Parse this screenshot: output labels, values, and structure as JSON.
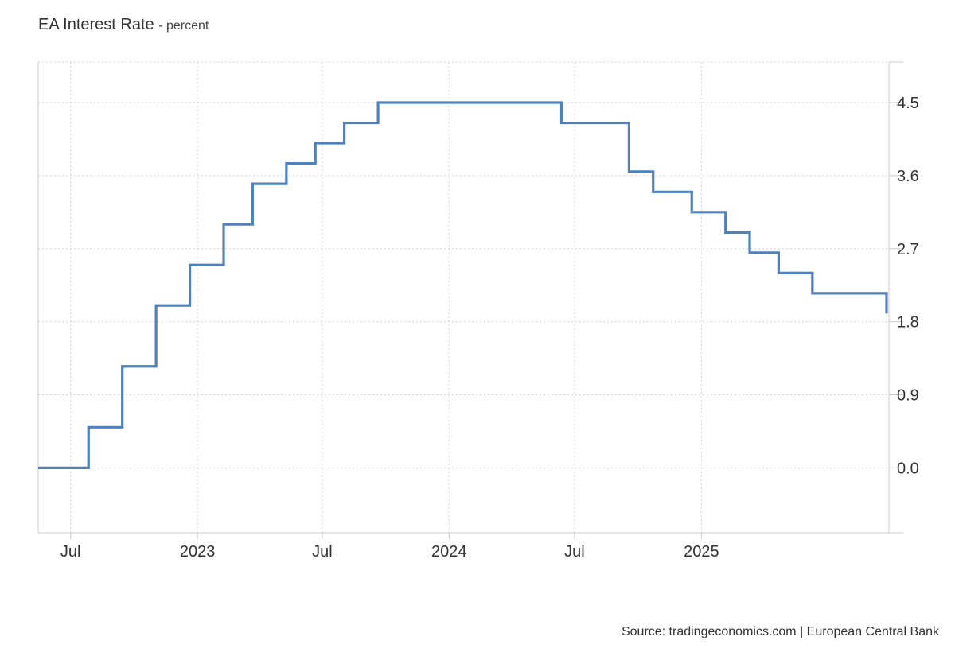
{
  "title": "EA Interest Rate",
  "subtitle": "- percent",
  "source": "Source: tradingeconomics.com | European Central Bank",
  "colors": {
    "line": "#4f81bd",
    "grid": "#d6d6d6",
    "axis": "#cccccc"
  },
  "chart_data": {
    "type": "line",
    "step": true,
    "title": "EA Interest Rate",
    "ylabel": "percent",
    "xlim": [
      "2022-05-15",
      "2025-09-30"
    ],
    "ylim": [
      -0.8,
      5.0
    ],
    "yticks": [
      0.0,
      0.9,
      1.8,
      2.7,
      3.6,
      4.5
    ],
    "ytick_labels": [
      "0.0",
      "0.9",
      "1.8",
      "2.7",
      "3.6",
      "4.5"
    ],
    "xticks": [
      {
        "date": "2022-07-01",
        "label": "Jul"
      },
      {
        "date": "2023-01-01",
        "label": "2023"
      },
      {
        "date": "2023-07-01",
        "label": "Jul"
      },
      {
        "date": "2024-01-01",
        "label": "2024"
      },
      {
        "date": "2024-07-01",
        "label": "Jul"
      },
      {
        "date": "2025-01-01",
        "label": "2025"
      }
    ],
    "grid": true,
    "series": [
      {
        "points": [
          {
            "x": "2022-05-15",
            "y": 0.0
          },
          {
            "x": "2022-07-27",
            "y": 0.5
          },
          {
            "x": "2022-09-14",
            "y": 1.25
          },
          {
            "x": "2022-11-02",
            "y": 2.0
          },
          {
            "x": "2022-12-21",
            "y": 2.5
          },
          {
            "x": "2023-02-08",
            "y": 3.0
          },
          {
            "x": "2023-03-22",
            "y": 3.5
          },
          {
            "x": "2023-05-10",
            "y": 3.75
          },
          {
            "x": "2023-06-21",
            "y": 4.0
          },
          {
            "x": "2023-08-02",
            "y": 4.25
          },
          {
            "x": "2023-09-20",
            "y": 4.5
          },
          {
            "x": "2024-06-12",
            "y": 4.25
          },
          {
            "x": "2024-09-18",
            "y": 3.65
          },
          {
            "x": "2024-10-23",
            "y": 3.4
          },
          {
            "x": "2024-12-18",
            "y": 3.15
          },
          {
            "x": "2025-02-05",
            "y": 2.9
          },
          {
            "x": "2025-03-12",
            "y": 2.65
          },
          {
            "x": "2025-04-23",
            "y": 2.4
          },
          {
            "x": "2025-06-11",
            "y": 2.15
          }
        ]
      }
    ]
  }
}
